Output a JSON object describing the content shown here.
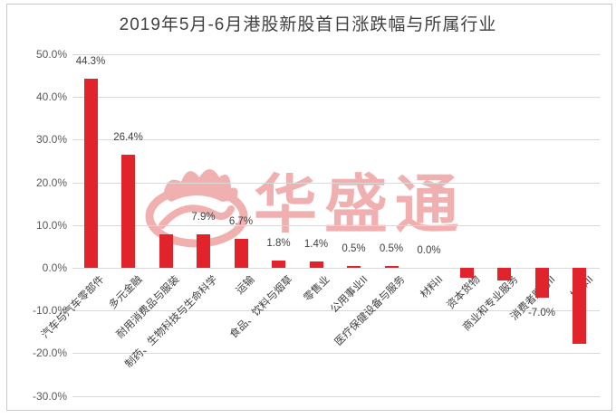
{
  "title": "2019年5月-6月港股新股首日涨跌幅与所属行业",
  "watermark": {
    "text": "华盛通",
    "logo": "flame-circle-logo"
  },
  "colors": {
    "bar": "#e1232b",
    "grid": "#d9d9d9",
    "tick_label": "#595959",
    "data_label": "#404040",
    "title": "#404040",
    "frame_border": "#c9c9c9",
    "watermark": "#dd4444",
    "background": "#ffffff"
  },
  "y_axis": {
    "ticks": [
      "50.0%",
      "40.0%",
      "30.0%",
      "20.0%",
      "10.0%",
      "0.0%",
      "-10.0%",
      "-20.0%",
      "-30.0%"
    ]
  },
  "chart_data": {
    "type": "bar",
    "title": "2019年5月-6月港股新股首日涨跌幅与所属行业",
    "categories": [
      "汽车与汽车零部件",
      "多元金融",
      "耐用消费品与服装",
      "制药、生物科技与生命科学",
      "运输",
      "食品、饮料与烟草",
      "零售业",
      "公用事业II",
      "医疗保健设备与服务",
      "材料II",
      "资本货物",
      "商业和专业服务",
      "消费者服务II",
      "媒体II"
    ],
    "values": [
      44.3,
      26.4,
      7.9,
      7.9,
      6.7,
      1.8,
      1.4,
      0.5,
      0.5,
      0.0,
      -2.3,
      -2.9,
      -7.0,
      -17.7
    ],
    "data_labels": [
      "44.3%",
      "26.4%",
      "",
      "7.9%",
      "6.7%",
      "1.8%",
      "1.4%",
      "0.5%",
      "0.5%",
      "0.0%",
      "",
      "",
      "-7.0%",
      ""
    ],
    "xlabel": "",
    "ylabel": "",
    "ylim": [
      -30,
      50
    ],
    "y_tick_step": 10,
    "grid": true,
    "legend": false,
    "bar_color": "#e1232b"
  }
}
